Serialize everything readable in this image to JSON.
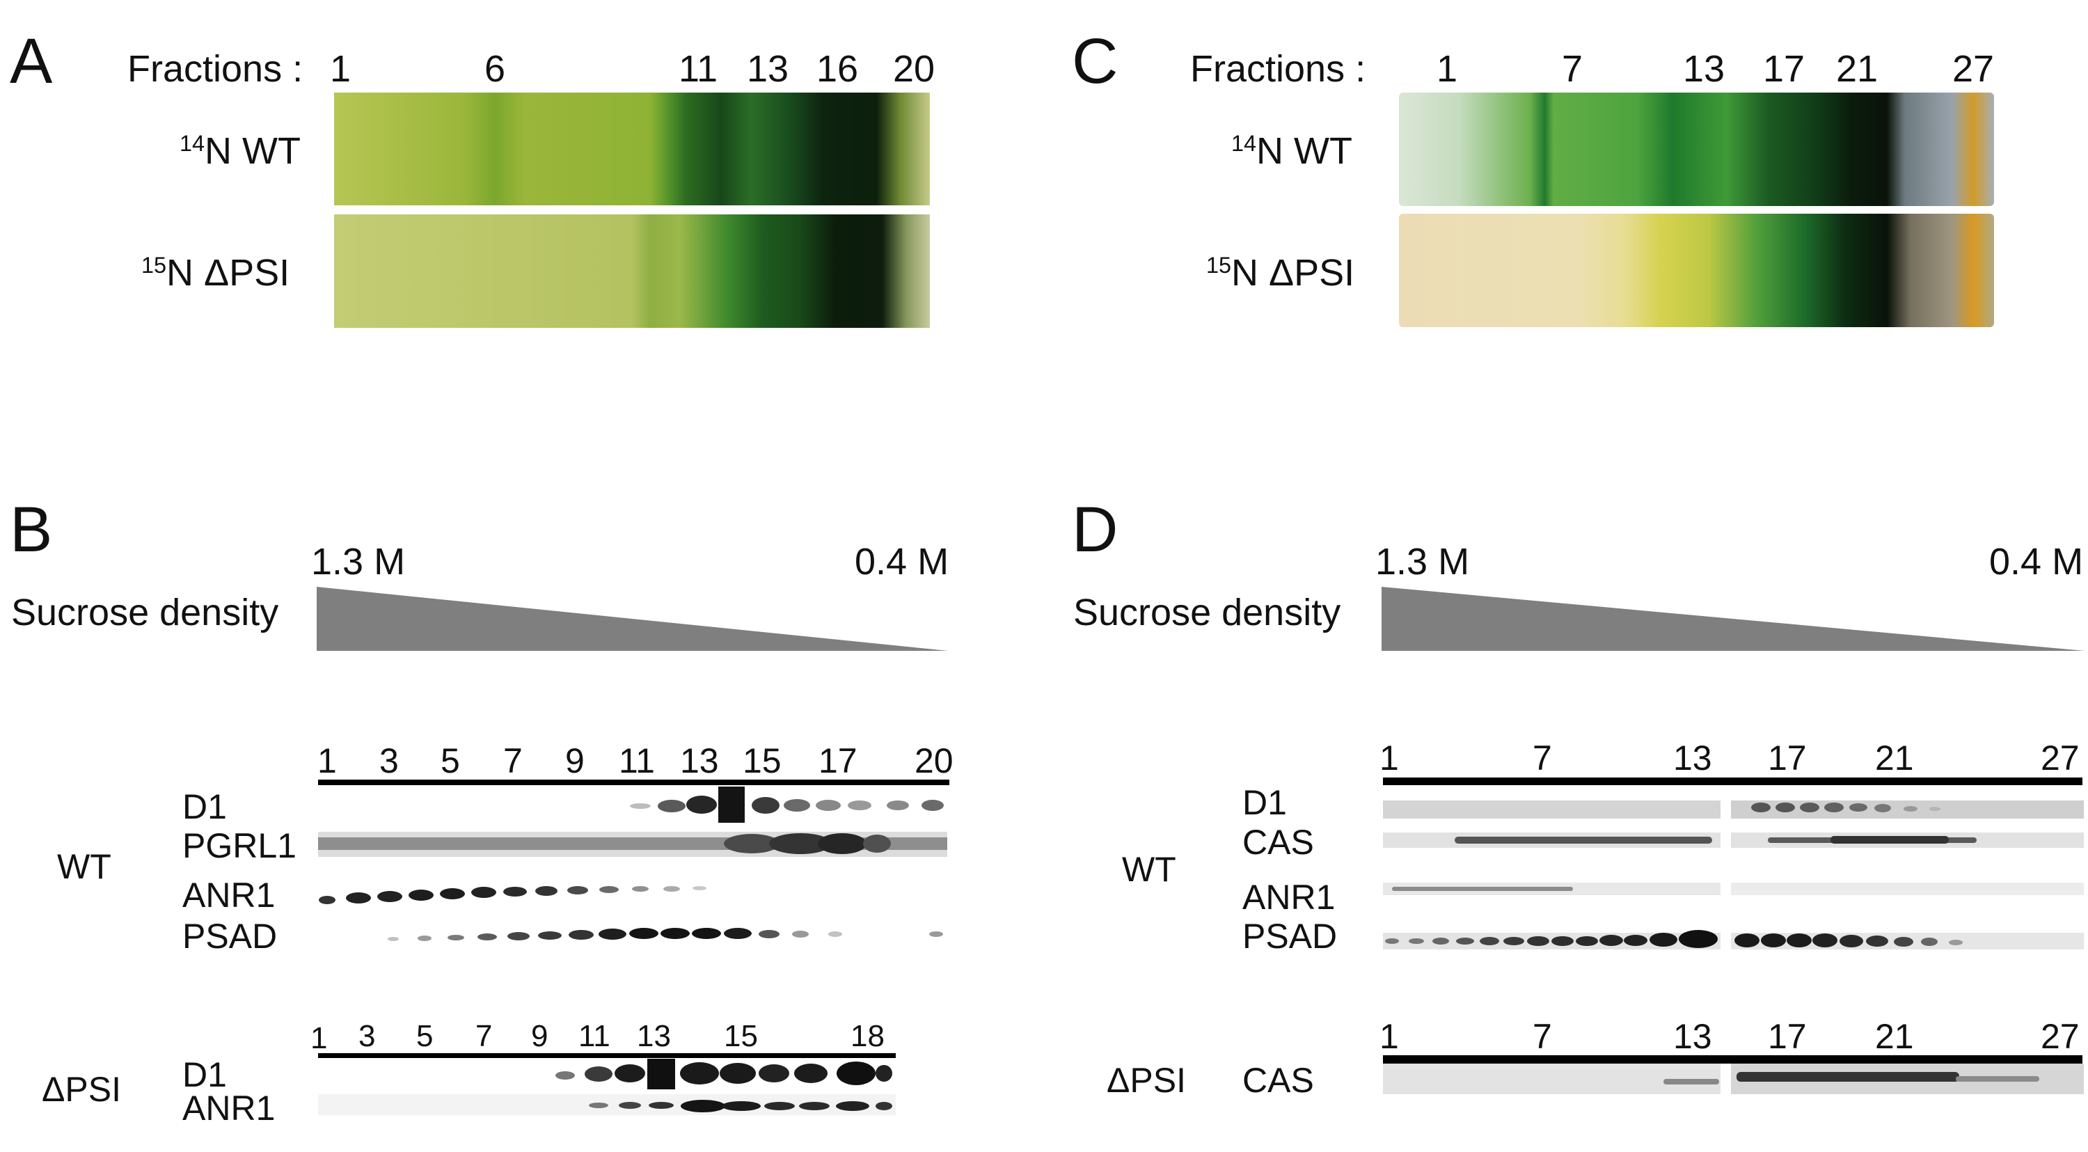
{
  "panels": {
    "a": {
      "letter": "A",
      "fractions_label": "Fractions :",
      "fractions": [
        "1",
        "6",
        "11",
        "13",
        "16",
        "20"
      ],
      "row1": {
        "isotope": "14",
        "label": "N WT"
      },
      "row2": {
        "isotope": "15",
        "label": "N ΔPSI"
      }
    },
    "b": {
      "letter": "B",
      "density_high": "1.3 M",
      "density_low": "0.4 M",
      "density_label": "Sucrose density",
      "wt": {
        "label": "WT",
        "fractions": [
          "1",
          "3",
          "5",
          "7",
          "9",
          "11",
          "13",
          "15",
          "17",
          "20"
        ],
        "bands": [
          "D1",
          "PGRL1",
          "ANR1",
          "PSAD"
        ]
      },
      "dpsi": {
        "label": "ΔPSI",
        "fractions": [
          "1",
          "3",
          "5",
          "7",
          "9",
          "11",
          "13",
          "15",
          "18"
        ],
        "bands": [
          "D1",
          "ANR1"
        ]
      }
    },
    "c": {
      "letter": "C",
      "fractions_label": "Fractions :",
      "fractions": [
        "1",
        "7",
        "13",
        "17",
        "21",
        "27"
      ],
      "row1": {
        "isotope": "14",
        "label": "N WT"
      },
      "row2": {
        "isotope": "15",
        "label": "N ΔPSI"
      }
    },
    "d": {
      "letter": "D",
      "density_high": "1.3 M",
      "density_low": "0.4 M",
      "density_label": "Sucrose density",
      "wt": {
        "label": "WT",
        "fractions": [
          "1",
          "7",
          "13",
          "17",
          "21",
          "27"
        ],
        "bands": [
          "D1",
          "CAS",
          "ANR1",
          "PSAD"
        ]
      },
      "dpsi": {
        "label": "ΔPSI",
        "fractions": [
          "1",
          "7",
          "13",
          "17",
          "21",
          "27"
        ],
        "bands": [
          "CAS"
        ]
      }
    }
  }
}
